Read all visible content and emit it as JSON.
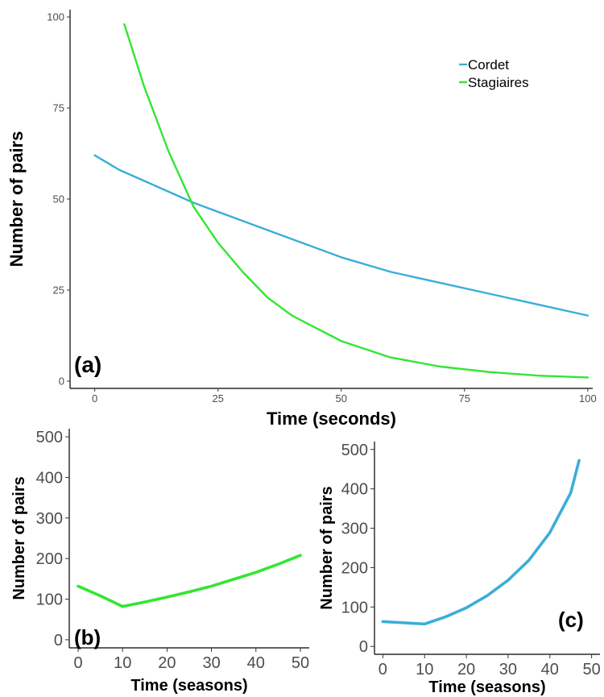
{
  "colors": {
    "cordet": "#3aaed8",
    "stagiaires": "#33e633",
    "axis": "#000000",
    "tick_text": "#4d4d4d"
  },
  "chart_data": [
    {
      "panel": "(a)",
      "type": "line",
      "xlabel": "Time (seconds)",
      "ylabel": "Number of pairs",
      "xlim": [
        -5,
        101
      ],
      "ylim": [
        -2,
        102
      ],
      "xticks": [
        0,
        25,
        50,
        75,
        100
      ],
      "yticks": [
        0,
        25,
        50,
        75,
        100
      ],
      "legend": {
        "position": "top-right",
        "entries": [
          "Cordet",
          "Stagiaires"
        ]
      },
      "series": [
        {
          "name": "Cordet",
          "color_key": "cordet",
          "x": [
            0,
            5,
            10,
            20,
            30,
            40,
            50,
            60,
            70,
            80,
            90,
            100
          ],
          "y": [
            62,
            58,
            55,
            49,
            44,
            39,
            34,
            30,
            27,
            24,
            21,
            18
          ]
        },
        {
          "name": "Stagiaires",
          "color_key": "stagiaires",
          "x": [
            6,
            10,
            15,
            20,
            25,
            30,
            35,
            40,
            50,
            60,
            70,
            80,
            90,
            100
          ],
          "y": [
            98,
            81,
            63,
            48,
            38,
            30,
            23,
            18,
            11,
            6.5,
            4,
            2.5,
            1.5,
            1
          ]
        }
      ]
    },
    {
      "panel": "(b)",
      "type": "line",
      "xlabel": "Time (seasons)",
      "ylabel": "Number of pairs",
      "xlim": [
        -2,
        52
      ],
      "ylim": [
        -20,
        520
      ],
      "xticks": [
        0,
        10,
        20,
        30,
        40,
        50
      ],
      "yticks": [
        0,
        100,
        200,
        300,
        400,
        500
      ],
      "series": [
        {
          "name": "",
          "color_key": "stagiaires",
          "x": [
            0,
            5,
            10,
            15,
            20,
            25,
            30,
            35,
            40,
            45,
            50
          ],
          "y": [
            132,
            108,
            82,
            93,
            105,
            118,
            132,
            149,
            166,
            186,
            208
          ]
        }
      ]
    },
    {
      "panel": "(c)",
      "type": "line",
      "xlabel": "Time (seasons)",
      "ylabel": "Number of pairs",
      "xlim": [
        -2,
        52
      ],
      "ylim": [
        -20,
        520
      ],
      "xticks": [
        0,
        10,
        20,
        30,
        40,
        50
      ],
      "yticks": [
        0,
        100,
        200,
        300,
        400,
        500
      ],
      "series": [
        {
          "name": "",
          "color_key": "cordet",
          "x": [
            0,
            5,
            10,
            15,
            20,
            25,
            30,
            35,
            40,
            45,
            47
          ],
          "y": [
            63,
            60,
            57,
            75,
            98,
            129,
            168,
            219,
            289,
            390,
            472
          ]
        }
      ]
    }
  ]
}
